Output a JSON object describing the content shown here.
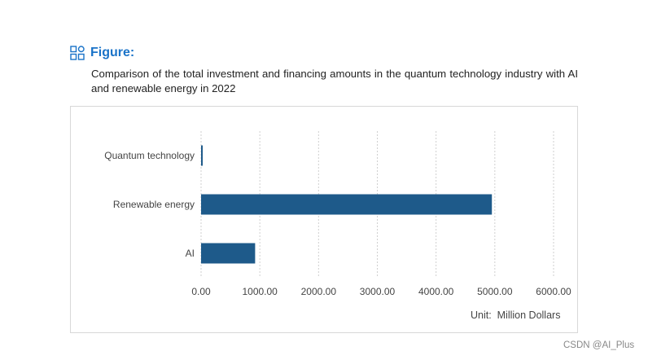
{
  "header": {
    "label": "Figure:",
    "caption": "Comparison of the total investment and financing amounts in the quantum technology industry with AI and renewable energy in 2022"
  },
  "chart_data": {
    "type": "bar",
    "orientation": "horizontal",
    "categories": [
      "Quantum technology",
      "Renewable energy",
      "AI"
    ],
    "values": [
      20,
      4950,
      920
    ],
    "xlim": [
      0,
      6000
    ],
    "x_ticks": [
      "0.00",
      "1000.00",
      "2000.00",
      "3000.00",
      "4000.00",
      "5000.00",
      "6000.00"
    ],
    "unit_label": "Unit:  Million Dollars",
    "grid": "vertical-dotted",
    "bar_color": "#1e5a8a",
    "legend": "none"
  },
  "watermark": "CSDN @AI_Plus",
  "colors": {
    "accent": "#1a73c8",
    "bar": "#1e5a8a"
  }
}
